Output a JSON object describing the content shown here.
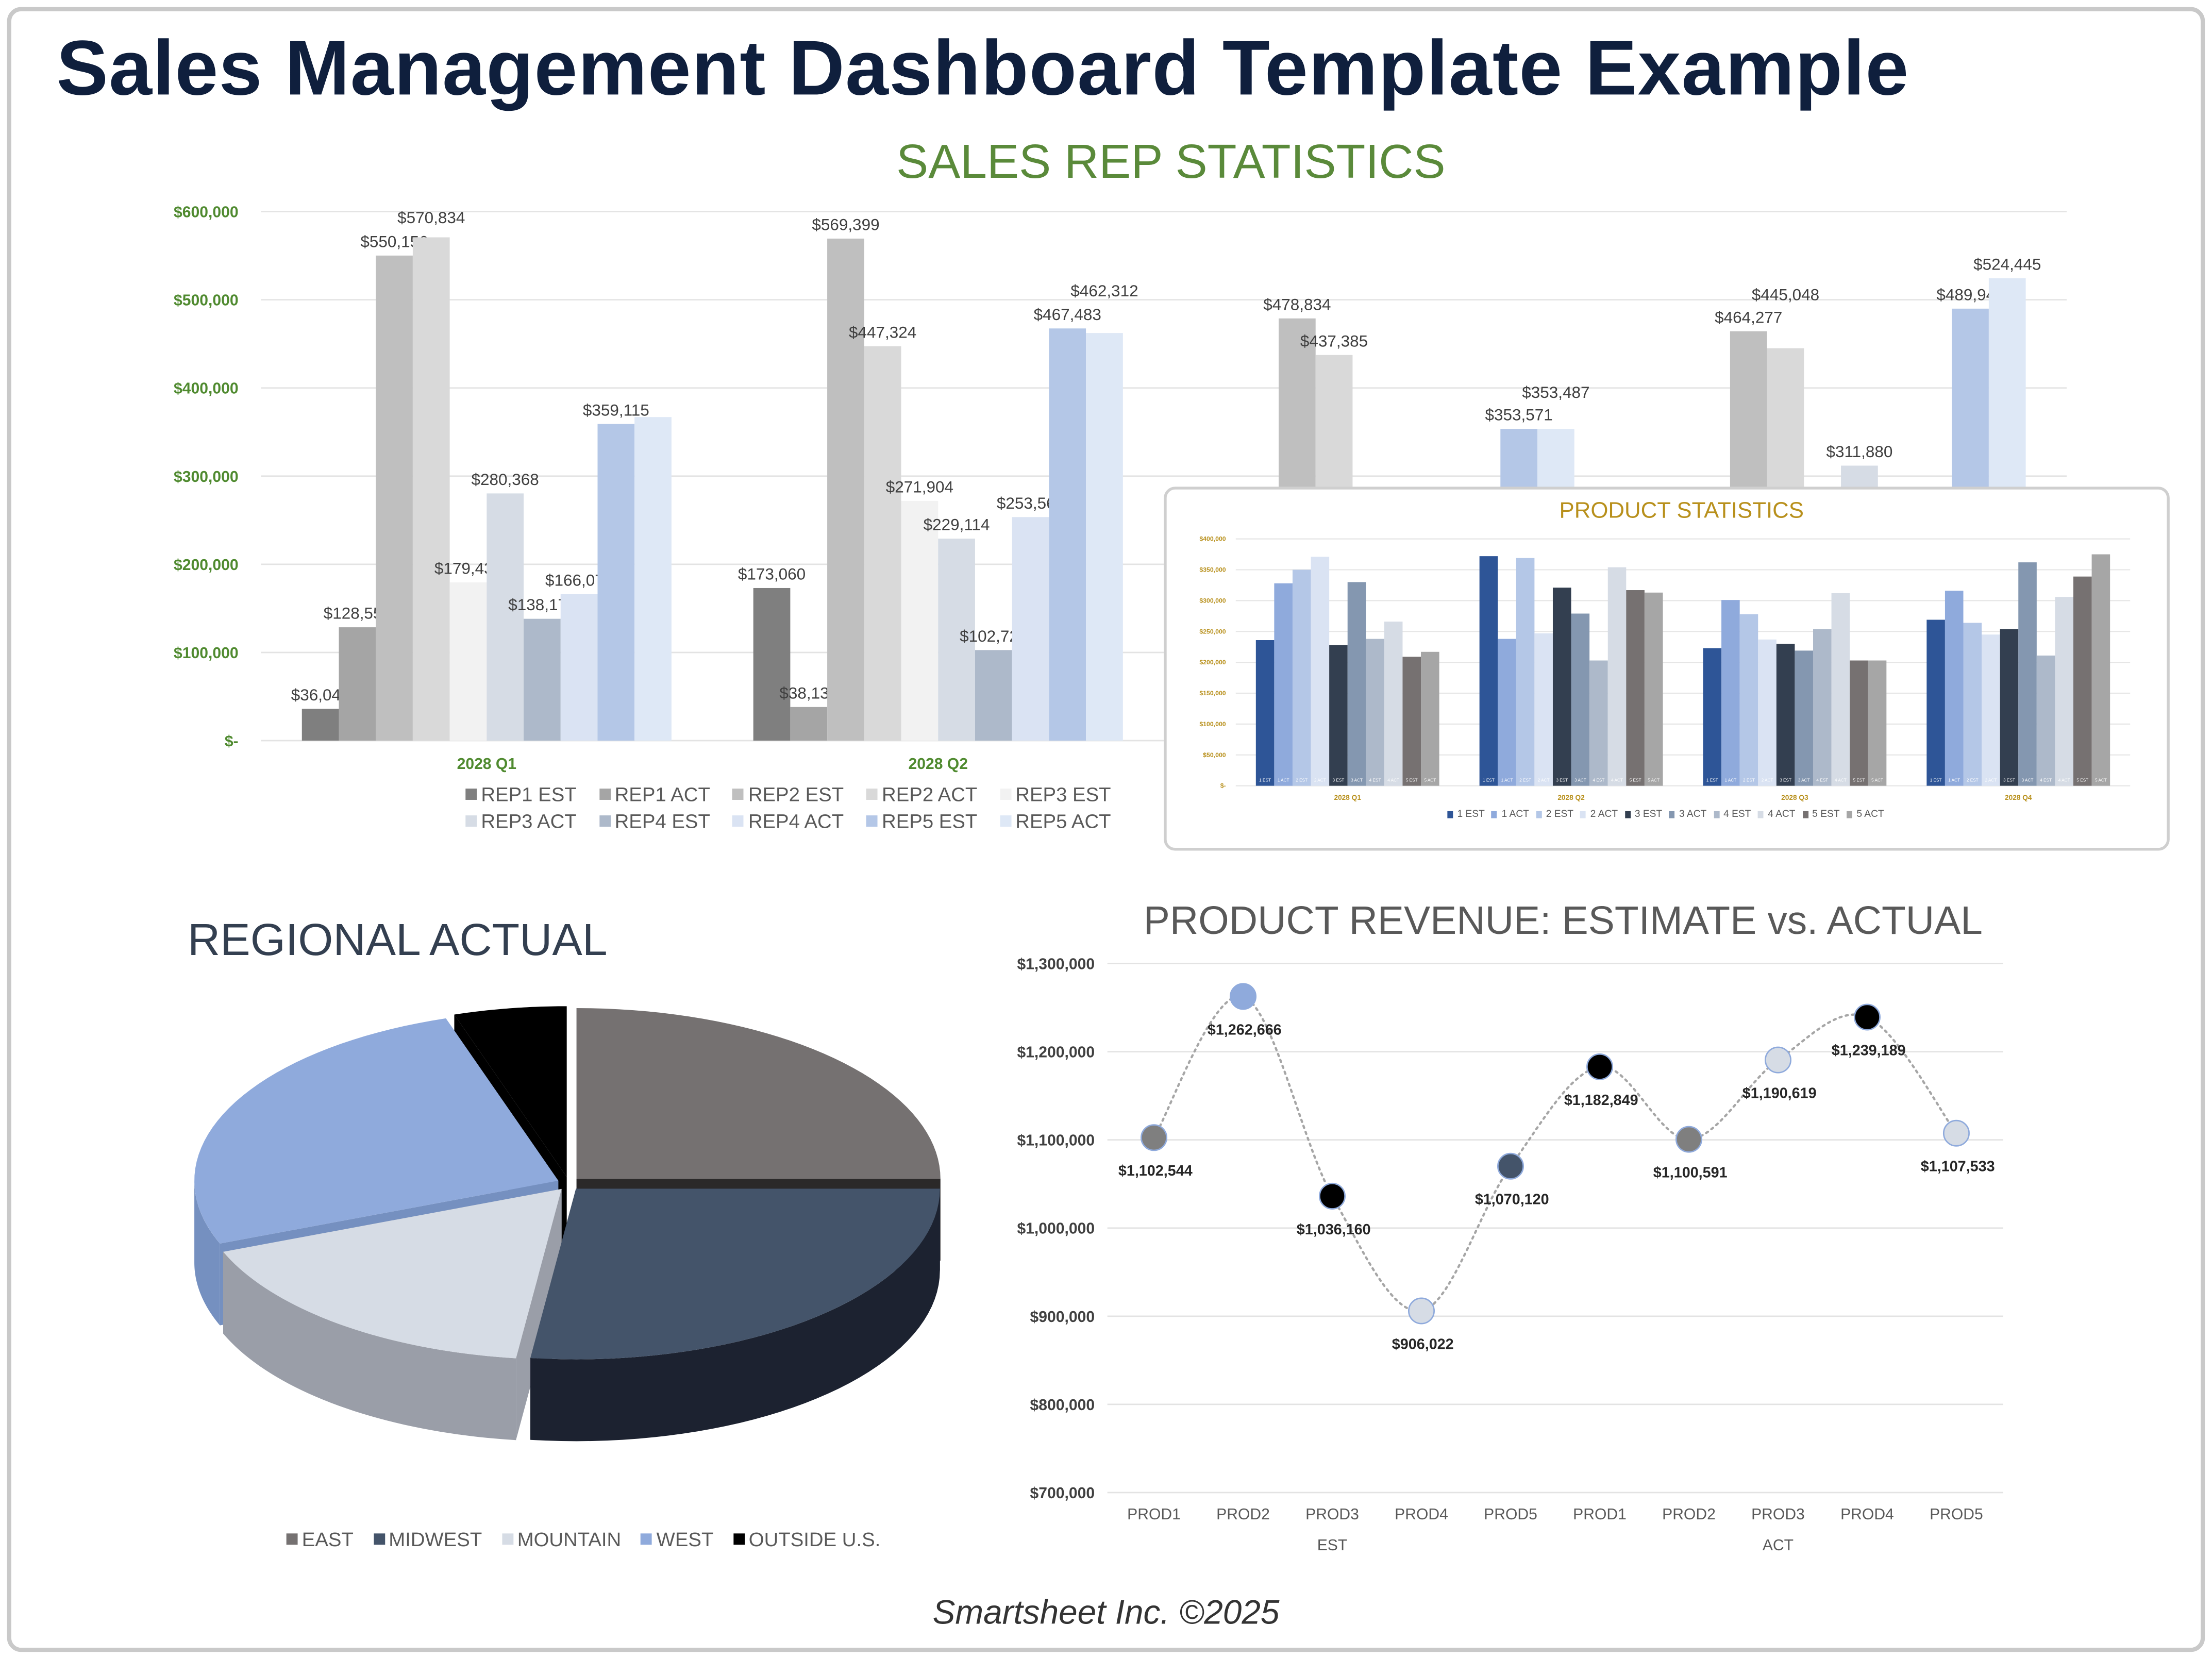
{
  "title": "Sales Management Dashboard Template Example",
  "footer": "Smartsheet Inc. ©2025",
  "chart_data": [
    {
      "id": "sales-rep",
      "type": "bar",
      "title": "SALES REP STATISTICS",
      "title_color": "#5a8a3a",
      "categories": [
        "2028 Q1",
        "2028 Q2",
        "2028 Q3",
        "2028 Q4"
      ],
      "ylim": [
        0,
        600000
      ],
      "yticks": [
        "$-",
        "$100,000",
        "$200,000",
        "$300,000",
        "$400,000",
        "$500,000",
        "$600,000"
      ],
      "grid": true,
      "legend": "bottom",
      "series": [
        {
          "name": "REP1 EST",
          "color": "#7f7f7f",
          "values": [
            36047,
            173060,
            null,
            null
          ],
          "labels": [
            "$36,047",
            "$173,060",
            "",
            ""
          ]
        },
        {
          "name": "REP1 ACT",
          "color": "#a5a5a5",
          "values": [
            128554,
            38136,
            null,
            null
          ],
          "labels": [
            "$128,554",
            "$38,136",
            "",
            ""
          ]
        },
        {
          "name": "REP2 EST",
          "color": "#bfbfbf",
          "values": [
            550156,
            569399,
            478834,
            464277
          ],
          "labels": [
            "$550,156",
            "$569,399",
            "$478,834",
            "$464,277"
          ]
        },
        {
          "name": "REP2 ACT",
          "color": "#d9d9d9",
          "values": [
            570834,
            447324,
            437385,
            445048
          ],
          "labels": [
            "$570,834",
            "$447,324",
            "$437,385",
            "$445,048"
          ]
        },
        {
          "name": "REP3 EST",
          "color": "#f2f2f2",
          "values": [
            179432,
            271904,
            null,
            null
          ],
          "labels": [
            "$179,432",
            "$271,904",
            "",
            ""
          ]
        },
        {
          "name": "REP3 ACT",
          "color": "#d6dce5",
          "values": [
            280368,
            229114,
            null,
            311880
          ],
          "labels": [
            "$280,368",
            "$229,114",
            "",
            "$311,880"
          ]
        },
        {
          "name": "REP4 EST",
          "color": "#adb9ca",
          "values": [
            138175,
            102721,
            null,
            null
          ],
          "labels": [
            "$138,175",
            "$102,721",
            "",
            ""
          ]
        },
        {
          "name": "REP4 ACT",
          "color": "#dae3f3",
          "values": [
            166070,
            253563,
            null,
            null
          ],
          "labels": [
            "$166,070",
            "$253,563",
            "",
            ""
          ]
        },
        {
          "name": "REP5 EST",
          "color": "#b4c7e7",
          "values": [
            359115,
            467483,
            353571,
            489945
          ],
          "labels": [
            "$359,115",
            "$467,483",
            "$353,571",
            "$489,945"
          ]
        },
        {
          "name": "REP5 ACT",
          "color": "#dee8f6",
          "values": [
            367000,
            462312,
            353487,
            524445
          ],
          "labels": [
            "",
            "$462,312",
            "$353,487",
            "$524,445"
          ]
        }
      ]
    },
    {
      "id": "product-stats",
      "type": "bar",
      "title": "PRODUCT STATISTICS",
      "title_color": "#b8901c",
      "categories": [
        "2028 Q1",
        "2028 Q2",
        "2028 Q3",
        "2028 Q4"
      ],
      "ylim": [
        0,
        400000
      ],
      "yticks": [
        "$-",
        "$50,000",
        "$100,000",
        "$150,000",
        "$200,000",
        "$250,000",
        "$300,000",
        "$350,000",
        "$400,000"
      ],
      "grid": true,
      "legend": "bottom",
      "series": [
        {
          "name": "1 EST",
          "color": "#2e5597",
          "values": [
            236000,
            372000,
            223000,
            269000
          ]
        },
        {
          "name": "1 ACT",
          "color": "#8faadc",
          "values": [
            328000,
            238000,
            301000,
            316000
          ]
        },
        {
          "name": "2 EST",
          "color": "#b4c7e7",
          "values": [
            350000,
            369000,
            278000,
            264000
          ]
        },
        {
          "name": "2 ACT",
          "color": "#dae3f3",
          "values": [
            371000,
            247000,
            237000,
            245000
          ]
        },
        {
          "name": "3 EST",
          "color": "#333f50",
          "values": [
            228000,
            321000,
            230000,
            254000
          ]
        },
        {
          "name": "3 ACT",
          "color": "#8497b0",
          "values": [
            330000,
            279000,
            219000,
            362000
          ]
        },
        {
          "name": "4 EST",
          "color": "#adb9ca",
          "values": [
            238000,
            203000,
            254000,
            211000
          ]
        },
        {
          "name": "4 ACT",
          "color": "#d6dce5",
          "values": [
            266000,
            354000,
            312000,
            306000
          ]
        },
        {
          "name": "5 EST",
          "color": "#767171",
          "values": [
            209000,
            317000,
            203000,
            339000
          ]
        },
        {
          "name": "5 ACT",
          "color": "#a6a6a6",
          "values": [
            217000,
            313000,
            203000,
            375000
          ]
        }
      ]
    },
    {
      "id": "regional",
      "type": "pie",
      "title": "REGIONAL ACTUAL",
      "legend": "bottom",
      "slices": [
        {
          "name": "EAST",
          "percent": 25,
          "color": "#757171",
          "side": "#2b2929"
        },
        {
          "name": "MIDWEST",
          "percent": 27,
          "color": "#44546a",
          "side": "#1c2230"
        },
        {
          "name": "MOUNTAIN",
          "percent": 17,
          "color": "#d6dce5",
          "side": "#9a9ea8"
        },
        {
          "name": "WEST",
          "percent": 26,
          "color": "#8faadc",
          "side": "#7590c0"
        },
        {
          "name": "OUTSIDE U.S.",
          "percent": 5,
          "color": "#000000",
          "side": "#000000"
        }
      ]
    },
    {
      "id": "product-revenue",
      "type": "line",
      "title": "PRODUCT REVENUE: ESTIMATE vs. ACTUAL",
      "ylim": [
        700000,
        1300000
      ],
      "yticks": [
        "$700,000",
        "$800,000",
        "$900,000",
        "$1,000,000",
        "$1,100,000",
        "$1,200,000",
        "$1,300,000"
      ],
      "grid": true,
      "groups": [
        "EST",
        "ACT"
      ],
      "categories": [
        "PROD1",
        "PROD2",
        "PROD3",
        "PROD4",
        "PROD5",
        "PROD1",
        "PROD2",
        "PROD3",
        "PROD4",
        "PROD5"
      ],
      "values": [
        1102544,
        1262666,
        1036160,
        906022,
        1070120,
        1182849,
        1100591,
        1190619,
        1239189,
        1107533
      ],
      "labels": [
        "$1,102,544",
        "$1,262,666",
        "$1,036,160",
        "$906,022",
        "$1,070,120",
        "$1,182,849",
        "$1,100,591",
        "$1,190,619",
        "$1,239,189",
        "$1,107,533"
      ],
      "point_colors": [
        "#7f7f7f",
        "#8faadc",
        "#000000",
        "#d6dce5",
        "#44546a",
        "#000000",
        "#7f7f7f",
        "#d6dce5",
        "#000000",
        "#d6dce5"
      ],
      "line_style": "dotted"
    }
  ]
}
